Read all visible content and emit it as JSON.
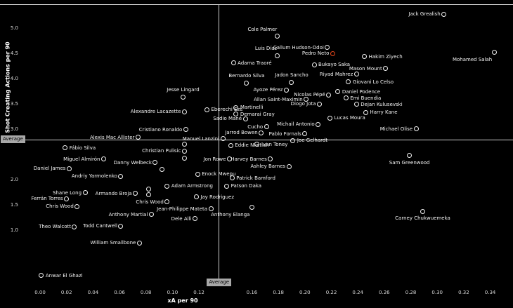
{
  "chart_data": {
    "type": "scatter",
    "title": "",
    "xlabel": "xA per 90",
    "ylabel": "Shot Creating Actions per 90",
    "xlim": [
      0,
      0.345
    ],
    "ylim": [
      0,
      5.45
    ],
    "x_ticks": [
      "0.00",
      "0.02",
      "0.04",
      "0.06",
      "0.08",
      "0.10",
      "0.12",
      "0.16",
      "0.18",
      "0.20",
      "0.22",
      "0.24",
      "0.26",
      "0.28",
      "0.30",
      "0.32",
      "0.34"
    ],
    "y_ticks": [
      "1.0",
      "1.5",
      "2.0",
      "3.0",
      "3.5",
      "4.0",
      "4.5",
      "5.0"
    ],
    "average_x": 0.135,
    "average_y": 2.8,
    "average_label": "Average",
    "legend": "none",
    "grid": false,
    "colors": {
      "background": "#000000",
      "dot_stroke": "#f2f2f2",
      "highlight": "#e8481c",
      "label_text": "#f5f5f5",
      "avg_line": "#cfcfcf",
      "avg_box_bg": "#a8a8a8",
      "avg_box_text": "#000000"
    },
    "points": [
      {
        "name": "Jack Grealish",
        "x": 0.305,
        "y": 5.28,
        "side": "l"
      },
      {
        "name": "Cole Palmer",
        "x": 0.179,
        "y": 4.84,
        "side": "tl"
      },
      {
        "name": "Callum Hudson-Odoi",
        "x": 0.217,
        "y": 4.62,
        "side": "l"
      },
      {
        "name": "Luis Díaz",
        "x": 0.179,
        "y": 4.46,
        "side": "tl"
      },
      {
        "name": "Pedro Neto",
        "x": 0.221,
        "y": 4.5,
        "side": "l",
        "highlight": true
      },
      {
        "name": "Hakim Ziyech",
        "x": 0.245,
        "y": 4.44,
        "side": "r"
      },
      {
        "name": "Mohamed Salah",
        "x": 0.343,
        "y": 4.52,
        "side": "bl"
      },
      {
        "name": "Bukayo Saka",
        "x": 0.207,
        "y": 4.28,
        "side": "r"
      },
      {
        "name": "Mason Mount",
        "x": 0.261,
        "y": 4.2,
        "side": "l"
      },
      {
        "name": "Adama Traoré",
        "x": 0.146,
        "y": 4.31,
        "side": "r"
      },
      {
        "name": "Riyad Mahrez",
        "x": 0.239,
        "y": 4.09,
        "side": "l"
      },
      {
        "name": "Bernardo Silva",
        "x": 0.156,
        "y": 3.92,
        "side": "t"
      },
      {
        "name": "Jadon Sancho",
        "x": 0.19,
        "y": 3.93,
        "side": "t"
      },
      {
        "name": "Giovani Lo Celso",
        "x": 0.233,
        "y": 3.94,
        "side": "r"
      },
      {
        "name": "Ayoze Pérez",
        "x": 0.186,
        "y": 3.78,
        "side": "l"
      },
      {
        "name": "Nicolas Pépé",
        "x": 0.218,
        "y": 3.68,
        "side": "l"
      },
      {
        "name": "Daniel Podence",
        "x": 0.225,
        "y": 3.74,
        "side": "r"
      },
      {
        "name": "Jesse Lingard",
        "x": 0.108,
        "y": 3.64,
        "side": "t"
      },
      {
        "name": "Allan Saint-Maximin",
        "x": 0.201,
        "y": 3.59,
        "side": "l"
      },
      {
        "name": "Emi Buendia",
        "x": 0.231,
        "y": 3.62,
        "side": "r"
      },
      {
        "name": "Diogo Jota",
        "x": 0.211,
        "y": 3.5,
        "side": "l"
      },
      {
        "name": "Dejan Kulusevski",
        "x": 0.239,
        "y": 3.49,
        "side": "r"
      },
      {
        "name": "Martinelli",
        "x": 0.148,
        "y": 3.43,
        "side": "r"
      },
      {
        "name": "Eberechi Eze",
        "x": 0.126,
        "y": 3.39,
        "side": "r"
      },
      {
        "name": "Alexandre Lacazette",
        "x": 0.109,
        "y": 3.35,
        "side": "l"
      },
      {
        "name": "Demarai Gray",
        "x": 0.148,
        "y": 3.3,
        "side": "r"
      },
      {
        "name": "Harry Kane",
        "x": 0.246,
        "y": 3.33,
        "side": "r"
      },
      {
        "name": "Sadio Mané",
        "x": 0.155,
        "y": 3.21,
        "side": "l"
      },
      {
        "name": "Cucho",
        "x": 0.171,
        "y": 3.05,
        "side": "l"
      },
      {
        "name": "Lucas Moura",
        "x": 0.219,
        "y": 3.22,
        "side": "r"
      },
      {
        "name": "Michail Antonio",
        "x": 0.21,
        "y": 3.1,
        "side": "l"
      },
      {
        "name": "Michael Olise",
        "x": 0.284,
        "y": 3.01,
        "side": "l"
      },
      {
        "name": "Jarrod Bowen",
        "x": 0.167,
        "y": 2.93,
        "side": "l"
      },
      {
        "name": "Pablo Fornals",
        "x": 0.2,
        "y": 2.91,
        "side": "l"
      },
      {
        "name": "Joe Gelhardt",
        "x": 0.191,
        "y": 2.78,
        "side": "r"
      },
      {
        "name": "Cristiano Ronaldo",
        "x": 0.11,
        "y": 2.99,
        "side": "l"
      },
      {
        "name": "Alexis Mac Allister",
        "x": 0.074,
        "y": 2.84,
        "side": "l"
      },
      {
        "name": "Manuel Lanzini",
        "x": 0.138,
        "y": 2.81,
        "side": "l"
      },
      {
        "name": "Fábio Silva",
        "x": 0.019,
        "y": 2.63,
        "side": "r"
      },
      {
        "name": "Eddie Nketiah",
        "x": 0.144,
        "y": 2.68,
        "side": "r"
      },
      {
        "name": "Ivan Toney",
        "x": 0.164,
        "y": 2.7,
        "side": "r"
      },
      {
        "name": "Christian Pulisic",
        "x": 0.109,
        "y": 2.57,
        "side": "l"
      },
      {
        "name": "Jon Rowe",
        "x": 0.143,
        "y": 2.41,
        "side": "l"
      },
      {
        "name": "Harvey Barnes",
        "x": 0.174,
        "y": 2.41,
        "side": "l"
      },
      {
        "name": "Miguel Almirón",
        "x": 0.048,
        "y": 2.41,
        "side": "l"
      },
      {
        "name": "Danny Welbeck",
        "x": 0.087,
        "y": 2.34,
        "side": "l"
      },
      {
        "name": "Ashley Barnes",
        "x": 0.188,
        "y": 2.26,
        "side": "l"
      },
      {
        "name": "Sam Greenwood",
        "x": 0.279,
        "y": 2.48,
        "side": "b"
      },
      {
        "name": "Daniel James",
        "x": 0.022,
        "y": 2.22,
        "side": "l"
      },
      {
        "name": "Andriy Yarmolenko",
        "x": 0.061,
        "y": 2.07,
        "side": "l"
      },
      {
        "name": "Enock Mwepu",
        "x": 0.119,
        "y": 2.11,
        "side": "r"
      },
      {
        "name": "Patrick Bamford",
        "x": 0.145,
        "y": 2.03,
        "side": "r"
      },
      {
        "name": "Adam Armstrong",
        "x": 0.096,
        "y": 1.87,
        "side": "r"
      },
      {
        "name": "Patson Daka",
        "x": 0.141,
        "y": 1.87,
        "side": "r"
      },
      {
        "name": "Shane Long",
        "x": 0.034,
        "y": 1.74,
        "side": "l"
      },
      {
        "name": "Armando Broja",
        "x": 0.072,
        "y": 1.73,
        "side": "l"
      },
      {
        "name": "Jay Rodriguez",
        "x": 0.118,
        "y": 1.66,
        "side": "r"
      },
      {
        "name": "Ferrán Torres",
        "x": 0.02,
        "y": 1.62,
        "side": "l"
      },
      {
        "name": "Chris Wood",
        "x": 0.028,
        "y": 1.47,
        "side": "l"
      },
      {
        "name": "Chris Wood",
        "x": 0.096,
        "y": 1.56,
        "side": "l"
      },
      {
        "name": "Jean-Philippe Mateta",
        "x": 0.129,
        "y": 1.42,
        "side": "l"
      },
      {
        "name": "Anthony Elanga",
        "x": 0.16,
        "y": 1.45,
        "side": "bl"
      },
      {
        "name": "Anthony Martial",
        "x": 0.084,
        "y": 1.31,
        "side": "l"
      },
      {
        "name": "Dele Alli",
        "x": 0.117,
        "y": 1.23,
        "side": "l"
      },
      {
        "name": "Carney Chukwuemeka",
        "x": 0.289,
        "y": 1.37,
        "side": "b"
      },
      {
        "name": "Theo Walcott",
        "x": 0.026,
        "y": 1.07,
        "side": "l"
      },
      {
        "name": "Todd Cantwell",
        "x": 0.061,
        "y": 1.08,
        "side": "l"
      },
      {
        "name": "William Smallbone",
        "x": 0.075,
        "y": 0.75,
        "side": "l"
      },
      {
        "name": "Anwar El Ghazi",
        "x": 0.001,
        "y": 0.1,
        "side": "r"
      }
    ],
    "unlabeled_points": [
      [
        0.109,
        2.71
      ],
      [
        0.109,
        2.42
      ],
      [
        0.092,
        2.21
      ],
      [
        0.082,
        1.81
      ],
      [
        0.082,
        1.71
      ]
    ]
  }
}
